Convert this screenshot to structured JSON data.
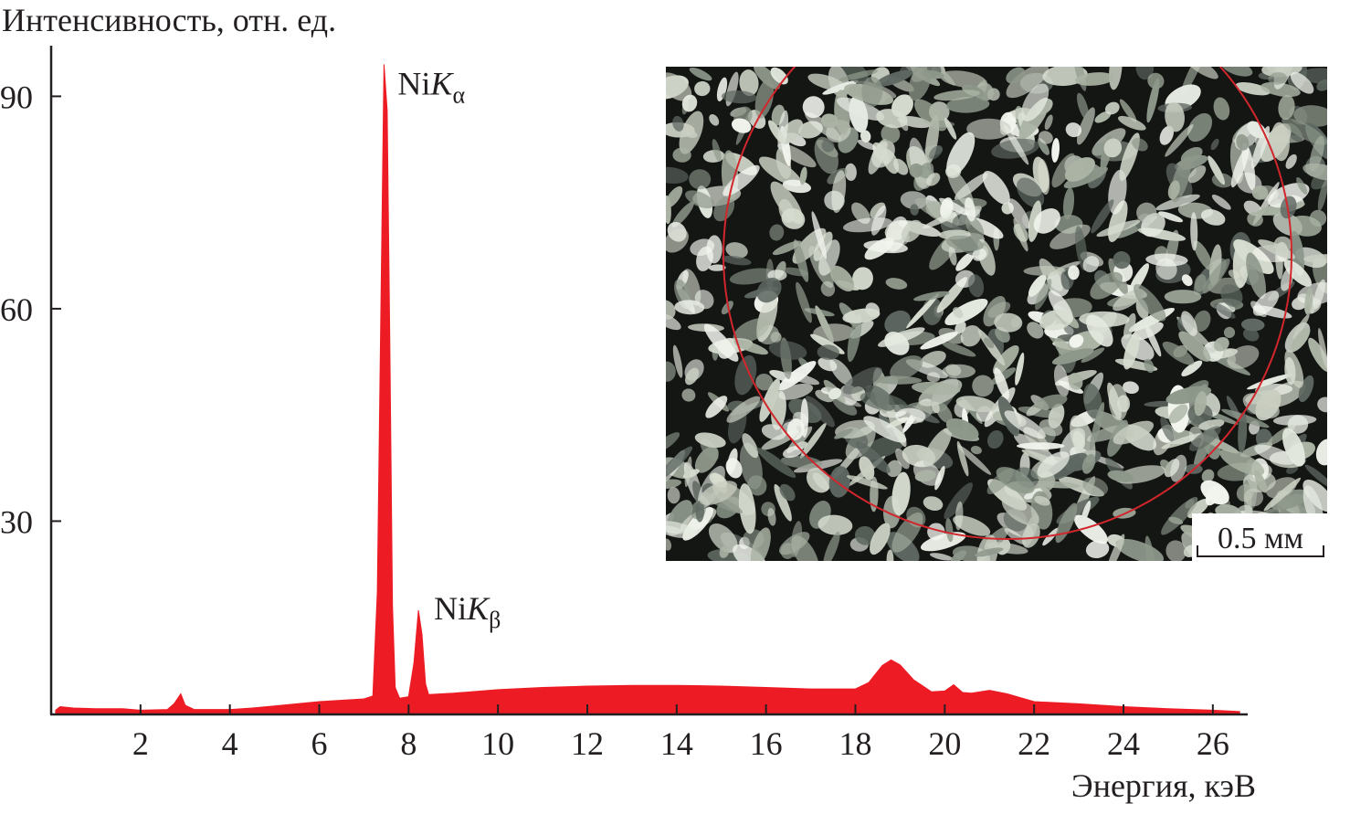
{
  "chart_data": {
    "type": "area",
    "ylabel": "Интенсивность, отн. ед.",
    "xlabel": "Энергия, кэВ",
    "xlim": [
      0,
      26.8
    ],
    "ylim": [
      2.7,
      96
    ],
    "x_ticks": [
      2,
      4,
      6,
      8,
      10,
      12,
      14,
      16,
      18,
      20,
      22,
      24,
      26
    ],
    "y_ticks": [
      30,
      60,
      90
    ],
    "grid": false,
    "series": [
      {
        "color": "#ed1c24",
        "points": [
          [
            0.1,
            3.3
          ],
          [
            0.2,
            3.8
          ],
          [
            0.5,
            3.6
          ],
          [
            1.0,
            3.5
          ],
          [
            1.6,
            3.5
          ],
          [
            2.0,
            3.3
          ],
          [
            2.6,
            3.4
          ],
          [
            2.75,
            4.2
          ],
          [
            2.9,
            5.6
          ],
          [
            3.0,
            4.0
          ],
          [
            3.2,
            3.4
          ],
          [
            4.0,
            3.4
          ],
          [
            4.5,
            3.6
          ],
          [
            5.0,
            3.9
          ],
          [
            5.5,
            4.2
          ],
          [
            6.0,
            4.5
          ],
          [
            6.5,
            4.7
          ],
          [
            7.0,
            4.9
          ],
          [
            7.2,
            5.3
          ],
          [
            7.3,
            20
          ],
          [
            7.38,
            60
          ],
          [
            7.45,
            94.5
          ],
          [
            7.52,
            88
          ],
          [
            7.58,
            55
          ],
          [
            7.64,
            18
          ],
          [
            7.7,
            6.5
          ],
          [
            7.8,
            5.0
          ],
          [
            8.0,
            5.2
          ],
          [
            8.12,
            10
          ],
          [
            8.22,
            17.4
          ],
          [
            8.3,
            14
          ],
          [
            8.38,
            7
          ],
          [
            8.45,
            5.5
          ],
          [
            9.0,
            5.7
          ],
          [
            10.0,
            6.2
          ],
          [
            11.0,
            6.5
          ],
          [
            12.0,
            6.7
          ],
          [
            13.0,
            6.8
          ],
          [
            14.0,
            6.8
          ],
          [
            15.0,
            6.7
          ],
          [
            16.0,
            6.5
          ],
          [
            17.0,
            6.3
          ],
          [
            18.0,
            6.3
          ],
          [
            18.3,
            7.2
          ],
          [
            18.6,
            9.6
          ],
          [
            18.8,
            10.4
          ],
          [
            19.0,
            9.7
          ],
          [
            19.3,
            7.6
          ],
          [
            19.7,
            5.9
          ],
          [
            20.0,
            6.0
          ],
          [
            20.2,
            6.9
          ],
          [
            20.4,
            5.8
          ],
          [
            20.6,
            5.7
          ],
          [
            21.0,
            6.1
          ],
          [
            21.4,
            5.6
          ],
          [
            22.0,
            4.5
          ],
          [
            23.0,
            4.2
          ],
          [
            24.0,
            3.8
          ],
          [
            25.0,
            3.5
          ],
          [
            26.0,
            3.3
          ],
          [
            26.6,
            3.1
          ]
        ]
      }
    ],
    "annotations": [
      {
        "base": "Ni",
        "italic": "K",
        "sub": "α",
        "x": 7.45,
        "y": 94.5
      },
      {
        "base": "Ni",
        "italic": "K",
        "sub": "β",
        "x": 8.22,
        "y": 17.4
      }
    ]
  },
  "inset": {
    "scale_bar_label": "0.5 мм",
    "circle_color": "#d1262c"
  }
}
